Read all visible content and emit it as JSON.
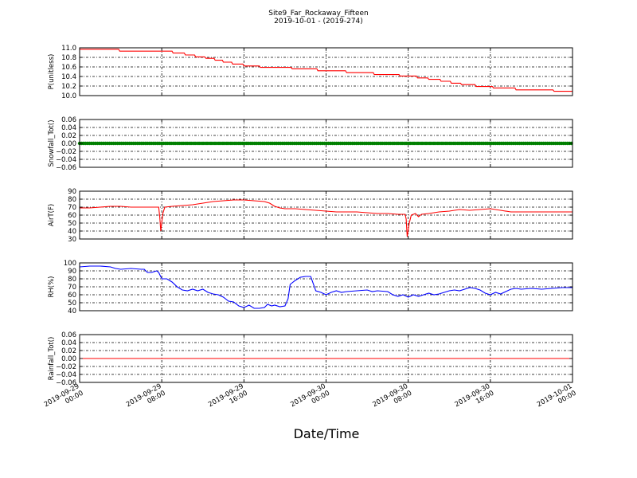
{
  "figure": {
    "title": "Site9_Far_Rockaway_Fifteen",
    "subtitle": "2019-10-01 - (2019-274)",
    "xlabel": "Date/Time"
  },
  "chart_data": {
    "type": "line",
    "grid": true,
    "x_ticks": [
      "2019-09-29 00:00",
      "2019-09-29 08:00",
      "2019-09-29 16:00",
      "2019-09-30 00:00",
      "2019-09-30 08:00",
      "2019-09-30 16:00",
      "2019-10-01 00:00"
    ],
    "xlim_hours": [
      0,
      48
    ],
    "panels": [
      {
        "ylabel": "P(unitless)",
        "ylim": [
          10.0,
          11.0
        ],
        "yticks": [
          "10.0",
          "10.2",
          "10.4",
          "10.6",
          "10.8",
          "11.0"
        ],
        "series": [
          {
            "color": "#ff0000",
            "marker": "line",
            "points": [
              [
                0,
                10.97
              ],
              [
                3.8,
                10.97
              ],
              [
                3.9,
                10.93
              ],
              [
                9,
                10.93
              ],
              [
                9.1,
                10.89
              ],
              [
                10.2,
                10.89
              ],
              [
                10.3,
                10.85
              ],
              [
                11.2,
                10.85
              ],
              [
                11.3,
                10.81
              ],
              [
                12.2,
                10.81
              ],
              [
                12.3,
                10.78
              ],
              [
                13.1,
                10.78
              ],
              [
                13.2,
                10.74
              ],
              [
                13.9,
                10.74
              ],
              [
                14,
                10.7
              ],
              [
                14.8,
                10.7
              ],
              [
                14.9,
                10.66
              ],
              [
                15.9,
                10.66
              ],
              [
                16,
                10.62
              ],
              [
                17.5,
                10.62
              ],
              [
                17.6,
                10.59
              ],
              [
                20.6,
                10.59
              ],
              [
                20.7,
                10.56
              ],
              [
                23.1,
                10.56
              ],
              [
                23.2,
                10.52
              ],
              [
                25.9,
                10.52
              ],
              [
                26,
                10.48
              ],
              [
                28.6,
                10.48
              ],
              [
                28.7,
                10.44
              ],
              [
                31.1,
                10.44
              ],
              [
                31.2,
                10.41
              ],
              [
                32.8,
                10.41
              ],
              [
                32.9,
                10.37
              ],
              [
                33.9,
                10.37
              ],
              [
                34,
                10.34
              ],
              [
                35.1,
                10.34
              ],
              [
                35.2,
                10.3
              ],
              [
                36.1,
                10.3
              ],
              [
                36.2,
                10.26
              ],
              [
                37.1,
                10.26
              ],
              [
                37.2,
                10.23
              ],
              [
                38.5,
                10.23
              ],
              [
                38.6,
                10.19
              ],
              [
                40.2,
                10.19
              ],
              [
                40.3,
                10.16
              ],
              [
                42.4,
                10.16
              ],
              [
                42.5,
                10.12
              ],
              [
                46.1,
                10.12
              ],
              [
                46.2,
                10.09
              ],
              [
                48,
                10.09
              ]
            ]
          }
        ]
      },
      {
        "ylabel": "Snowfall_Tot()",
        "ylim": [
          -0.06,
          0.06
        ],
        "yticks": [
          "−0.06",
          "−0.04",
          "−0.02",
          "0.00",
          "0.02",
          "0.04",
          "0.06"
        ],
        "series": [
          {
            "color": "#008000",
            "marker": "dots",
            "points": [
              [
                0,
                0
              ],
              [
                48,
                0
              ]
            ]
          }
        ]
      },
      {
        "ylabel": "AirT(F)",
        "ylim": [
          30,
          90
        ],
        "yticks": [
          "30",
          "40",
          "50",
          "60",
          "70",
          "80",
          "90"
        ],
        "series": [
          {
            "color": "#ff0000",
            "marker": "line",
            "points": [
              [
                0,
                69
              ],
              [
                1,
                69
              ],
              [
                2,
                70
              ],
              [
                3,
                71
              ],
              [
                4,
                71
              ],
              [
                5,
                70
              ],
              [
                6,
                70
              ],
              [
                7,
                70
              ],
              [
                7.7,
                70
              ],
              [
                7.8,
                58
              ],
              [
                7.9,
                40
              ],
              [
                8.1,
                62
              ],
              [
                8.3,
                70
              ],
              [
                9,
                71
              ],
              [
                10,
                72
              ],
              [
                11,
                73
              ],
              [
                12,
                75
              ],
              [
                13,
                77
              ],
              [
                14,
                78
              ],
              [
                15,
                79
              ],
              [
                16,
                79
              ],
              [
                17,
                78
              ],
              [
                18,
                77
              ],
              [
                18.5,
                75
              ],
              [
                19,
                71
              ],
              [
                19.5,
                69
              ],
              [
                20,
                68
              ],
              [
                21,
                68
              ],
              [
                22,
                67
              ],
              [
                23,
                66
              ],
              [
                24,
                65
              ],
              [
                25,
                64
              ],
              [
                26,
                64
              ],
              [
                27,
                64
              ],
              [
                28,
                63
              ],
              [
                29,
                62
              ],
              [
                30,
                62
              ],
              [
                31,
                61
              ],
              [
                31.7,
                61
              ],
              [
                31.8,
                55
              ],
              [
                31.9,
                33
              ],
              [
                32.1,
                50
              ],
              [
                32.3,
                60
              ],
              [
                32.7,
                62
              ],
              [
                33,
                58
              ],
              [
                33.3,
                61
              ],
              [
                34,
                62
              ],
              [
                35,
                64
              ],
              [
                36,
                65
              ],
              [
                37,
                67
              ],
              [
                38,
                66
              ],
              [
                39,
                67
              ],
              [
                40,
                68
              ],
              [
                41,
                66
              ],
              [
                42,
                64
              ],
              [
                43,
                64
              ],
              [
                44,
                64
              ],
              [
                45,
                64
              ],
              [
                46,
                64
              ],
              [
                47,
                64
              ],
              [
                48,
                64
              ]
            ]
          }
        ]
      },
      {
        "ylabel": "RH(%)",
        "ylim": [
          40,
          100
        ],
        "yticks": [
          "40",
          "50",
          "60",
          "70",
          "80",
          "90",
          "100"
        ],
        "series": [
          {
            "color": "#0000ff",
            "marker": "line",
            "points": [
              [
                0,
                95
              ],
              [
                1,
                96
              ],
              [
                2,
                96
              ],
              [
                3,
                95
              ],
              [
                3.5,
                93
              ],
              [
                4,
                92
              ],
              [
                5,
                93
              ],
              [
                6,
                92
              ],
              [
                6.3,
                92
              ],
              [
                6.6,
                88
              ],
              [
                7,
                88
              ],
              [
                7.5,
                90
              ],
              [
                7.7,
                88
              ],
              [
                8,
                80
              ],
              [
                8.5,
                80
              ],
              [
                9,
                76
              ],
              [
                9.5,
                70
              ],
              [
                10,
                66
              ],
              [
                10.5,
                65
              ],
              [
                11,
                67
              ],
              [
                11.5,
                65
              ],
              [
                12,
                67
              ],
              [
                12.5,
                63
              ],
              [
                13,
                61
              ],
              [
                13.5,
                60
              ],
              [
                14,
                57
              ],
              [
                14.5,
                52
              ],
              [
                15,
                51
              ],
              [
                15.5,
                46
              ],
              [
                16,
                44
              ],
              [
                16.5,
                47
              ],
              [
                17,
                43
              ],
              [
                17.5,
                43
              ],
              [
                18,
                44
              ],
              [
                18.3,
                48
              ],
              [
                18.7,
                46
              ],
              [
                19,
                47
              ],
              [
                19.5,
                45
              ],
              [
                20,
                46
              ],
              [
                20.3,
                55
              ],
              [
                20.5,
                73
              ],
              [
                21,
                78
              ],
              [
                21.5,
                82
              ],
              [
                22,
                83
              ],
              [
                22.5,
                83
              ],
              [
                23,
                65
              ],
              [
                23.5,
                63
              ],
              [
                24,
                60
              ],
              [
                24.5,
                63
              ],
              [
                25,
                65
              ],
              [
                25.5,
                63
              ],
              [
                26,
                64
              ],
              [
                27,
                65
              ],
              [
                28,
                66
              ],
              [
                28.5,
                64
              ],
              [
                29,
                65
              ],
              [
                30,
                64
              ],
              [
                30.5,
                60
              ],
              [
                31,
                58
              ],
              [
                31.5,
                60
              ],
              [
                32,
                57
              ],
              [
                32.5,
                60
              ],
              [
                33,
                58
              ],
              [
                33.5,
                60
              ],
              [
                34,
                62
              ],
              [
                34.5,
                60
              ],
              [
                35,
                61
              ],
              [
                35.5,
                63
              ],
              [
                36,
                65
              ],
              [
                36.5,
                66
              ],
              [
                37,
                65
              ],
              [
                37.5,
                67
              ],
              [
                38,
                69
              ],
              [
                38.5,
                68
              ],
              [
                39,
                66
              ],
              [
                39.5,
                62
              ],
              [
                40,
                60
              ],
              [
                40.5,
                63
              ],
              [
                41,
                61
              ],
              [
                41.5,
                64
              ],
              [
                42,
                67
              ],
              [
                42.5,
                68
              ],
              [
                43,
                67
              ],
              [
                44,
                68
              ],
              [
                45,
                67
              ],
              [
                46,
                68
              ],
              [
                47,
                69
              ],
              [
                48,
                69
              ]
            ]
          }
        ]
      },
      {
        "ylabel": "Rainfall_Tot()",
        "ylim": [
          -0.06,
          0.06
        ],
        "yticks": [
          "−0.06",
          "−0.04",
          "−0.02",
          "0.00",
          "0.02",
          "0.04",
          "0.06"
        ],
        "series": [
          {
            "color": "#ff0000",
            "marker": "line",
            "points": [
              [
                0,
                0
              ],
              [
                48,
                0
              ]
            ]
          }
        ]
      }
    ]
  }
}
